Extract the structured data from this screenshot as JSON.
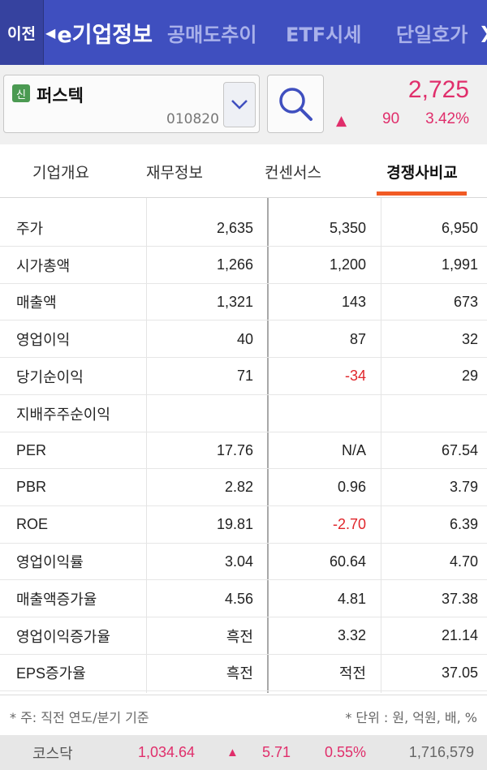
{
  "nav": {
    "back_label": "이전",
    "active_tab": "e기업정보",
    "tabs": [
      "공매도추이",
      "ETF시세",
      "단일호가"
    ],
    "more": "❯"
  },
  "stock": {
    "badge": "신",
    "name": "퍼스텍",
    "code": "010820",
    "price": "2,725",
    "change_arrow": "▲",
    "change": "90",
    "change_rate": "3.42%",
    "up_color": "#e02e6b"
  },
  "subtabs": [
    {
      "label": "기업개요",
      "active": false
    },
    {
      "label": "재무정보",
      "active": false
    },
    {
      "label": "컨센서스",
      "active": false
    },
    {
      "label": "경쟁사비교",
      "active": true
    }
  ],
  "table": {
    "rows": [
      {
        "label": "주가",
        "v1": "2,635",
        "v2": "5,350",
        "v3": "6,950"
      },
      {
        "label": "시가총액",
        "v1": "1,266",
        "v2": "1,200",
        "v3": "1,991"
      },
      {
        "label": "매출액",
        "v1": "1,321",
        "v2": "143",
        "v3": "673"
      },
      {
        "label": "영업이익",
        "v1": "40",
        "v2": "87",
        "v3": "32"
      },
      {
        "label": "당기순이익",
        "v1": "71",
        "v2": "-34",
        "v3": "29"
      },
      {
        "label": "지배주주순이익",
        "v1": "",
        "v2": "",
        "v3": ""
      },
      {
        "label": "PER",
        "v1": "17.76",
        "v2": "N/A",
        "v3": "67.54"
      },
      {
        "label": "PBR",
        "v1": "2.82",
        "v2": "0.96",
        "v3": "3.79"
      },
      {
        "label": "ROE",
        "v1": "19.81",
        "v2": "-2.70",
        "v3": "6.39"
      },
      {
        "label": "영업이익률",
        "v1": "3.04",
        "v2": "60.64",
        "v3": "4.70"
      },
      {
        "label": "매출액증가율",
        "v1": "4.56",
        "v2": "4.81",
        "v3": "37.38"
      },
      {
        "label": "영업이익증가율",
        "v1": "흑전",
        "v2": "3.32",
        "v3": "21.14"
      },
      {
        "label": "EPS증가율",
        "v1": "흑전",
        "v2": "적전",
        "v3": "37.05"
      }
    ],
    "negative_color": "#e0262b"
  },
  "footnote": {
    "left": "* 주: 직전 연도/분기 기준",
    "right": "* 단위 : 원, 억원, 배, %"
  },
  "index": {
    "name": "코스닥",
    "value": "1,034.64",
    "arrow": "▲",
    "change": "5.71",
    "rate": "0.55%",
    "volume": "1,716,579"
  }
}
